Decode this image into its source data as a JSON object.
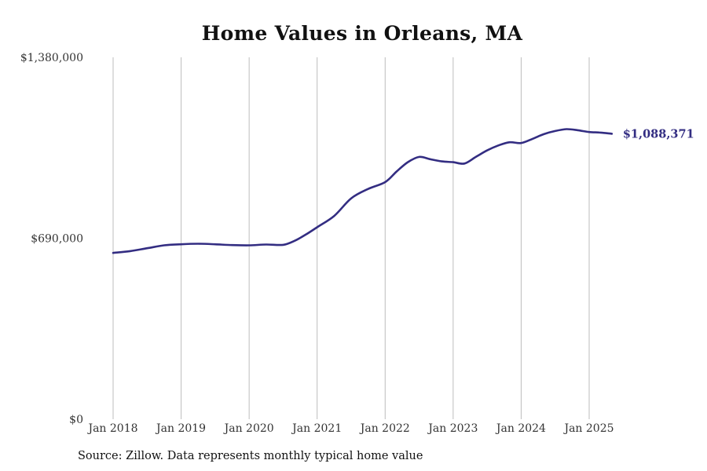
{
  "chart_data": {
    "type": "line",
    "title": "Home Values in Orleans, MA",
    "xlabel": "",
    "ylabel": "",
    "ylim": [
      0,
      1380000
    ],
    "y_ticks": [
      0,
      690000,
      1380000
    ],
    "y_tick_labels": [
      "$0",
      "$690,000",
      "$1,380,000"
    ],
    "x_ticks": [
      "2018-01",
      "2019-01",
      "2020-01",
      "2021-01",
      "2022-01",
      "2023-01",
      "2024-01",
      "2025-01"
    ],
    "x_tick_labels": [
      "Jan 2018",
      "Jan 2019",
      "Jan 2020",
      "Jan 2021",
      "Jan 2022",
      "Jan 2023",
      "Jan 2024",
      "Jan 2025"
    ],
    "vertical_grid": true,
    "line_color": "#332d82",
    "end_label": "$1,088,371",
    "series": [
      {
        "name": "",
        "points": [
          [
            "2018-01",
            634000
          ],
          [
            "2018-04",
            641000
          ],
          [
            "2018-07",
            652000
          ],
          [
            "2018-10",
            663000
          ],
          [
            "2019-01",
            667000
          ],
          [
            "2019-04",
            669000
          ],
          [
            "2019-07",
            667000
          ],
          [
            "2019-10",
            664000
          ],
          [
            "2020-01",
            663000
          ],
          [
            "2020-04",
            666000
          ],
          [
            "2020-07",
            665000
          ],
          [
            "2020-09",
            680000
          ],
          [
            "2020-11",
            704000
          ],
          [
            "2021-01",
            732000
          ],
          [
            "2021-04",
            775000
          ],
          [
            "2021-07",
            842000
          ],
          [
            "2021-10",
            878000
          ],
          [
            "2022-01",
            904000
          ],
          [
            "2022-03",
            944000
          ],
          [
            "2022-05",
            980000
          ],
          [
            "2022-07",
            1000000
          ],
          [
            "2022-09",
            991000
          ],
          [
            "2022-11",
            983000
          ],
          [
            "2023-01",
            980000
          ],
          [
            "2023-03",
            975000
          ],
          [
            "2023-05",
            1000000
          ],
          [
            "2023-07",
            1025000
          ],
          [
            "2023-09",
            1044000
          ],
          [
            "2023-11",
            1056000
          ],
          [
            "2024-01",
            1053000
          ],
          [
            "2024-03",
            1069000
          ],
          [
            "2024-05",
            1087000
          ],
          [
            "2024-07",
            1099000
          ],
          [
            "2024-09",
            1106000
          ],
          [
            "2024-11",
            1102000
          ],
          [
            "2025-01",
            1095000
          ],
          [
            "2025-03",
            1093000
          ],
          [
            "2025-05",
            1088371
          ]
        ]
      }
    ]
  },
  "footer": {
    "source": "Source: Zillow. Data represents monthly typical home value"
  }
}
